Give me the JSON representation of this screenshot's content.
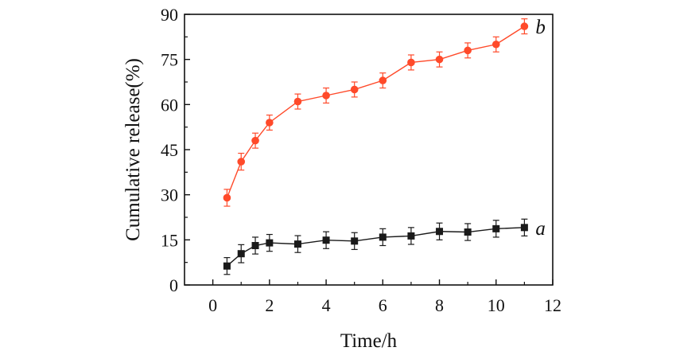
{
  "chart_data": {
    "type": "line",
    "xlabel": "Time/h",
    "ylabel": "Cumulative release(%)",
    "xlim": [
      -1,
      12
    ],
    "ylim": [
      0,
      90
    ],
    "xticks": [
      0,
      2,
      4,
      6,
      8,
      10,
      12
    ],
    "yticks": [
      0,
      15,
      30,
      45,
      60,
      75,
      90
    ],
    "series": [
      {
        "name": "a",
        "color": "#1a1a1a",
        "marker": "square",
        "x": [
          0.5,
          1,
          1.5,
          2,
          3,
          4,
          5,
          6,
          7,
          8,
          9,
          10,
          11
        ],
        "values": [
          6.3,
          10.4,
          13.1,
          14.0,
          13.6,
          14.9,
          14.6,
          15.9,
          16.3,
          17.8,
          17.6,
          18.7,
          19.1
        ],
        "error": [
          2.8,
          3.0,
          2.8,
          2.8,
          2.8,
          2.8,
          2.8,
          2.8,
          2.8,
          2.8,
          2.8,
          2.8,
          2.8
        ]
      },
      {
        "name": "b",
        "color": "#ff4a2a",
        "marker": "circle",
        "x": [
          0.5,
          1,
          1.5,
          2,
          3,
          4,
          5,
          6,
          7,
          8,
          9,
          10,
          11
        ],
        "values": [
          29.0,
          41.0,
          48.0,
          54.0,
          61.0,
          63.0,
          65.0,
          68.0,
          74.0,
          75.0,
          78.0,
          80.0,
          86.0
        ],
        "error": [
          2.8,
          2.8,
          2.5,
          2.5,
          2.5,
          2.5,
          2.5,
          2.5,
          2.5,
          2.5,
          2.5,
          2.5,
          2.5
        ]
      }
    ]
  }
}
